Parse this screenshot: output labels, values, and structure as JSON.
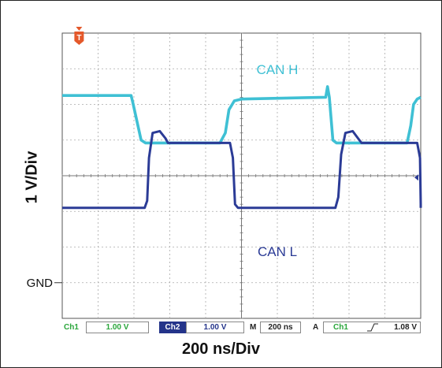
{
  "chart_data": {
    "type": "line",
    "title": "",
    "xlabel": "200 ns/Div",
    "ylabel": "1 V/Div",
    "grid": true,
    "x_divisions": 10,
    "y_divisions": 8,
    "ground_label": "GND",
    "trigger_marker": "T",
    "series": [
      {
        "name": "CAN H",
        "color": "#3fc0d4",
        "points": [
          [
            0,
            6.25
          ],
          [
            1.92,
            6.25
          ],
          [
            1.97,
            6.05
          ],
          [
            2.2,
            5.0
          ],
          [
            2.32,
            4.92
          ],
          [
            4.4,
            4.92
          ],
          [
            4.55,
            5.2
          ],
          [
            4.65,
            5.85
          ],
          [
            4.8,
            6.1
          ],
          [
            5.0,
            6.15
          ],
          [
            7.35,
            6.2
          ],
          [
            7.4,
            6.5
          ],
          [
            7.45,
            6.2
          ],
          [
            7.55,
            5.0
          ],
          [
            7.65,
            4.92
          ],
          [
            9.62,
            4.92
          ],
          [
            9.72,
            5.4
          ],
          [
            9.8,
            6.0
          ],
          [
            9.9,
            6.15
          ],
          [
            10,
            6.2
          ]
        ]
      },
      {
        "name": "CAN L",
        "color": "#2b3b96",
        "points": [
          [
            0,
            3.1
          ],
          [
            2.3,
            3.1
          ],
          [
            2.37,
            3.3
          ],
          [
            2.42,
            4.5
          ],
          [
            2.52,
            5.2
          ],
          [
            2.72,
            5.25
          ],
          [
            2.88,
            5.05
          ],
          [
            2.95,
            4.92
          ],
          [
            4.68,
            4.92
          ],
          [
            4.76,
            4.5
          ],
          [
            4.82,
            3.2
          ],
          [
            4.9,
            3.1
          ],
          [
            7.62,
            3.1
          ],
          [
            7.7,
            3.4
          ],
          [
            7.78,
            4.6
          ],
          [
            7.9,
            5.2
          ],
          [
            8.1,
            5.25
          ],
          [
            8.25,
            5.05
          ],
          [
            8.35,
            4.92
          ],
          [
            9.9,
            4.92
          ],
          [
            9.98,
            4.5
          ],
          [
            10.04,
            3.2
          ],
          [
            10.12,
            3.1
          ],
          [
            10,
            3.1
          ]
        ]
      }
    ],
    "annotations": [
      {
        "text": "CAN H",
        "color": "#3fc0d4"
      },
      {
        "text": "CAN L",
        "color": "#2b3b96"
      }
    ]
  },
  "status_bar": {
    "ch1_label": "Ch1",
    "ch1_value": "1.00 V",
    "ch2_label": "Ch2",
    "ch2_value": "1.00 V",
    "time_label": "M",
    "time_value": "200 ns",
    "acq_label": "A",
    "trig_channel": "Ch1",
    "trig_slope_icon": "rising-edge-icon",
    "trig_level": "1.08 V"
  },
  "colors": {
    "ch1": "#3fc0d4",
    "ch2": "#2b3b96",
    "trigger_marker": "#e4582a",
    "ch1_text": "#2aa63b",
    "ch2_text": "#24348a"
  }
}
